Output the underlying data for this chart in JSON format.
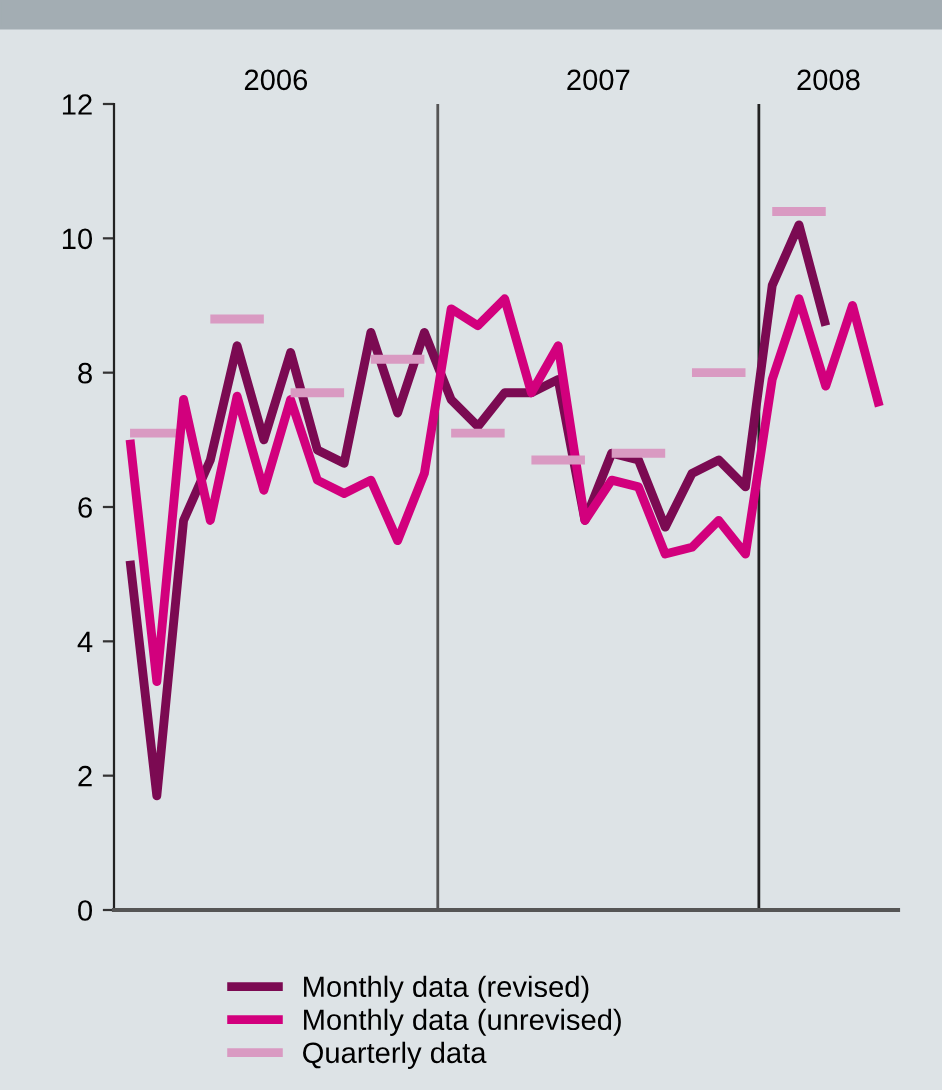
{
  "chart_data": {
    "type": "line",
    "categories": [
      null,
      null,
      null,
      null,
      null,
      null,
      null,
      null,
      null,
      null,
      null,
      null,
      null,
      null,
      null,
      null,
      null,
      null,
      null,
      null,
      null,
      null,
      null,
      null,
      null,
      null,
      null,
      null,
      null
    ],
    "ylim": [
      0,
      12
    ],
    "yticks": [
      0,
      2,
      4,
      6,
      8,
      10,
      12
    ],
    "annotations": [
      "2006",
      "2007",
      "2008"
    ],
    "grid": false,
    "legend": "bottom",
    "line_style": "solid",
    "marker": "none",
    "series": [
      {
        "name": "Monthly data (revised)",
        "color": "#7b0a52",
        "values": [
          5.2,
          1.7,
          5.8,
          6.7,
          8.4,
          7.0,
          8.3,
          6.85,
          6.65,
          8.6,
          7.4,
          8.6,
          7.6,
          7.2,
          7.7,
          7.7,
          7.9,
          5.8,
          6.8,
          6.7,
          5.7,
          6.5,
          6.7,
          6.3,
          9.3,
          10.2,
          8.7,
          null,
          null
        ]
      },
      {
        "name": "Monthly data (unrevised)",
        "color": "#d2007d",
        "values": [
          7.0,
          3.4,
          7.6,
          5.8,
          7.65,
          6.25,
          7.6,
          6.4,
          6.2,
          6.4,
          5.5,
          6.5,
          8.95,
          8.7,
          9.1,
          7.7,
          8.4,
          5.8,
          6.4,
          6.3,
          5.3,
          5.4,
          5.8,
          5.3,
          7.9,
          9.1,
          7.8,
          9.0,
          7.5
        ]
      },
      {
        "name": "Quarterly data",
        "color": "#d99ac2",
        "values": [
          7.1,
          7.1,
          7.1,
          null,
          null,
          null,
          null,
          null,
          null,
          null,
          null,
          null,
          null,
          null,
          null,
          null,
          null,
          null,
          null,
          null,
          null,
          null,
          null,
          null,
          null,
          null,
          null,
          null,
          null
        ]
      },
      {
        "color": "#d99ac2",
        "values": [
          null,
          null,
          null,
          8.8,
          8.8,
          8.8,
          null,
          null,
          null,
          null,
          null,
          null,
          null,
          null,
          null,
          null,
          null,
          null,
          null,
          null,
          null,
          null,
          null,
          null,
          null,
          null,
          null,
          null,
          null
        ]
      },
      {
        "color": "#d99ac2",
        "values": [
          null,
          null,
          null,
          null,
          null,
          null,
          7.7,
          7.7,
          7.7,
          null,
          null,
          null,
          null,
          null,
          null,
          null,
          null,
          null,
          null,
          null,
          null,
          null,
          null,
          null,
          null,
          null,
          null,
          null,
          null
        ]
      },
      {
        "color": "#d99ac2",
        "values": [
          null,
          null,
          null,
          null,
          null,
          null,
          null,
          null,
          null,
          8.2,
          8.2,
          8.2,
          null,
          null,
          null,
          null,
          null,
          null,
          null,
          null,
          null,
          null,
          null,
          null,
          null,
          null,
          null,
          null,
          null
        ]
      },
      {
        "color": "#d99ac2",
        "values": [
          null,
          null,
          null,
          null,
          null,
          null,
          null,
          null,
          null,
          null,
          null,
          null,
          7.1,
          7.1,
          7.1,
          null,
          null,
          null,
          null,
          null,
          null,
          null,
          null,
          null,
          null,
          null,
          null,
          null,
          null
        ]
      },
      {
        "color": "#d99ac2",
        "values": [
          null,
          null,
          null,
          null,
          null,
          null,
          null,
          null,
          null,
          null,
          null,
          null,
          null,
          null,
          null,
          6.7,
          6.7,
          6.7,
          null,
          null,
          null,
          null,
          null,
          null,
          null,
          null,
          null,
          null,
          null
        ]
      },
      {
        "color": "#d99ac2",
        "values": [
          null,
          null,
          null,
          null,
          null,
          null,
          null,
          null,
          null,
          null,
          null,
          null,
          null,
          null,
          null,
          null,
          null,
          null,
          6.8,
          6.8,
          6.8,
          null,
          null,
          null,
          null,
          null,
          null,
          null,
          null
        ]
      },
      {
        "color": "#d99ac2",
        "values": [
          null,
          null,
          null,
          null,
          null,
          null,
          null,
          null,
          null,
          null,
          null,
          null,
          null,
          null,
          null,
          null,
          null,
          null,
          null,
          null,
          null,
          8.0,
          8.0,
          8.0,
          null,
          null,
          null,
          null,
          null
        ]
      },
      {
        "color": "#d99ac2",
        "values": [
          null,
          null,
          null,
          null,
          null,
          null,
          null,
          null,
          null,
          null,
          null,
          null,
          null,
          null,
          null,
          null,
          null,
          null,
          null,
          null,
          null,
          null,
          null,
          null,
          10.4,
          10.4,
          10.4,
          null,
          null
        ]
      }
    ]
  }
}
